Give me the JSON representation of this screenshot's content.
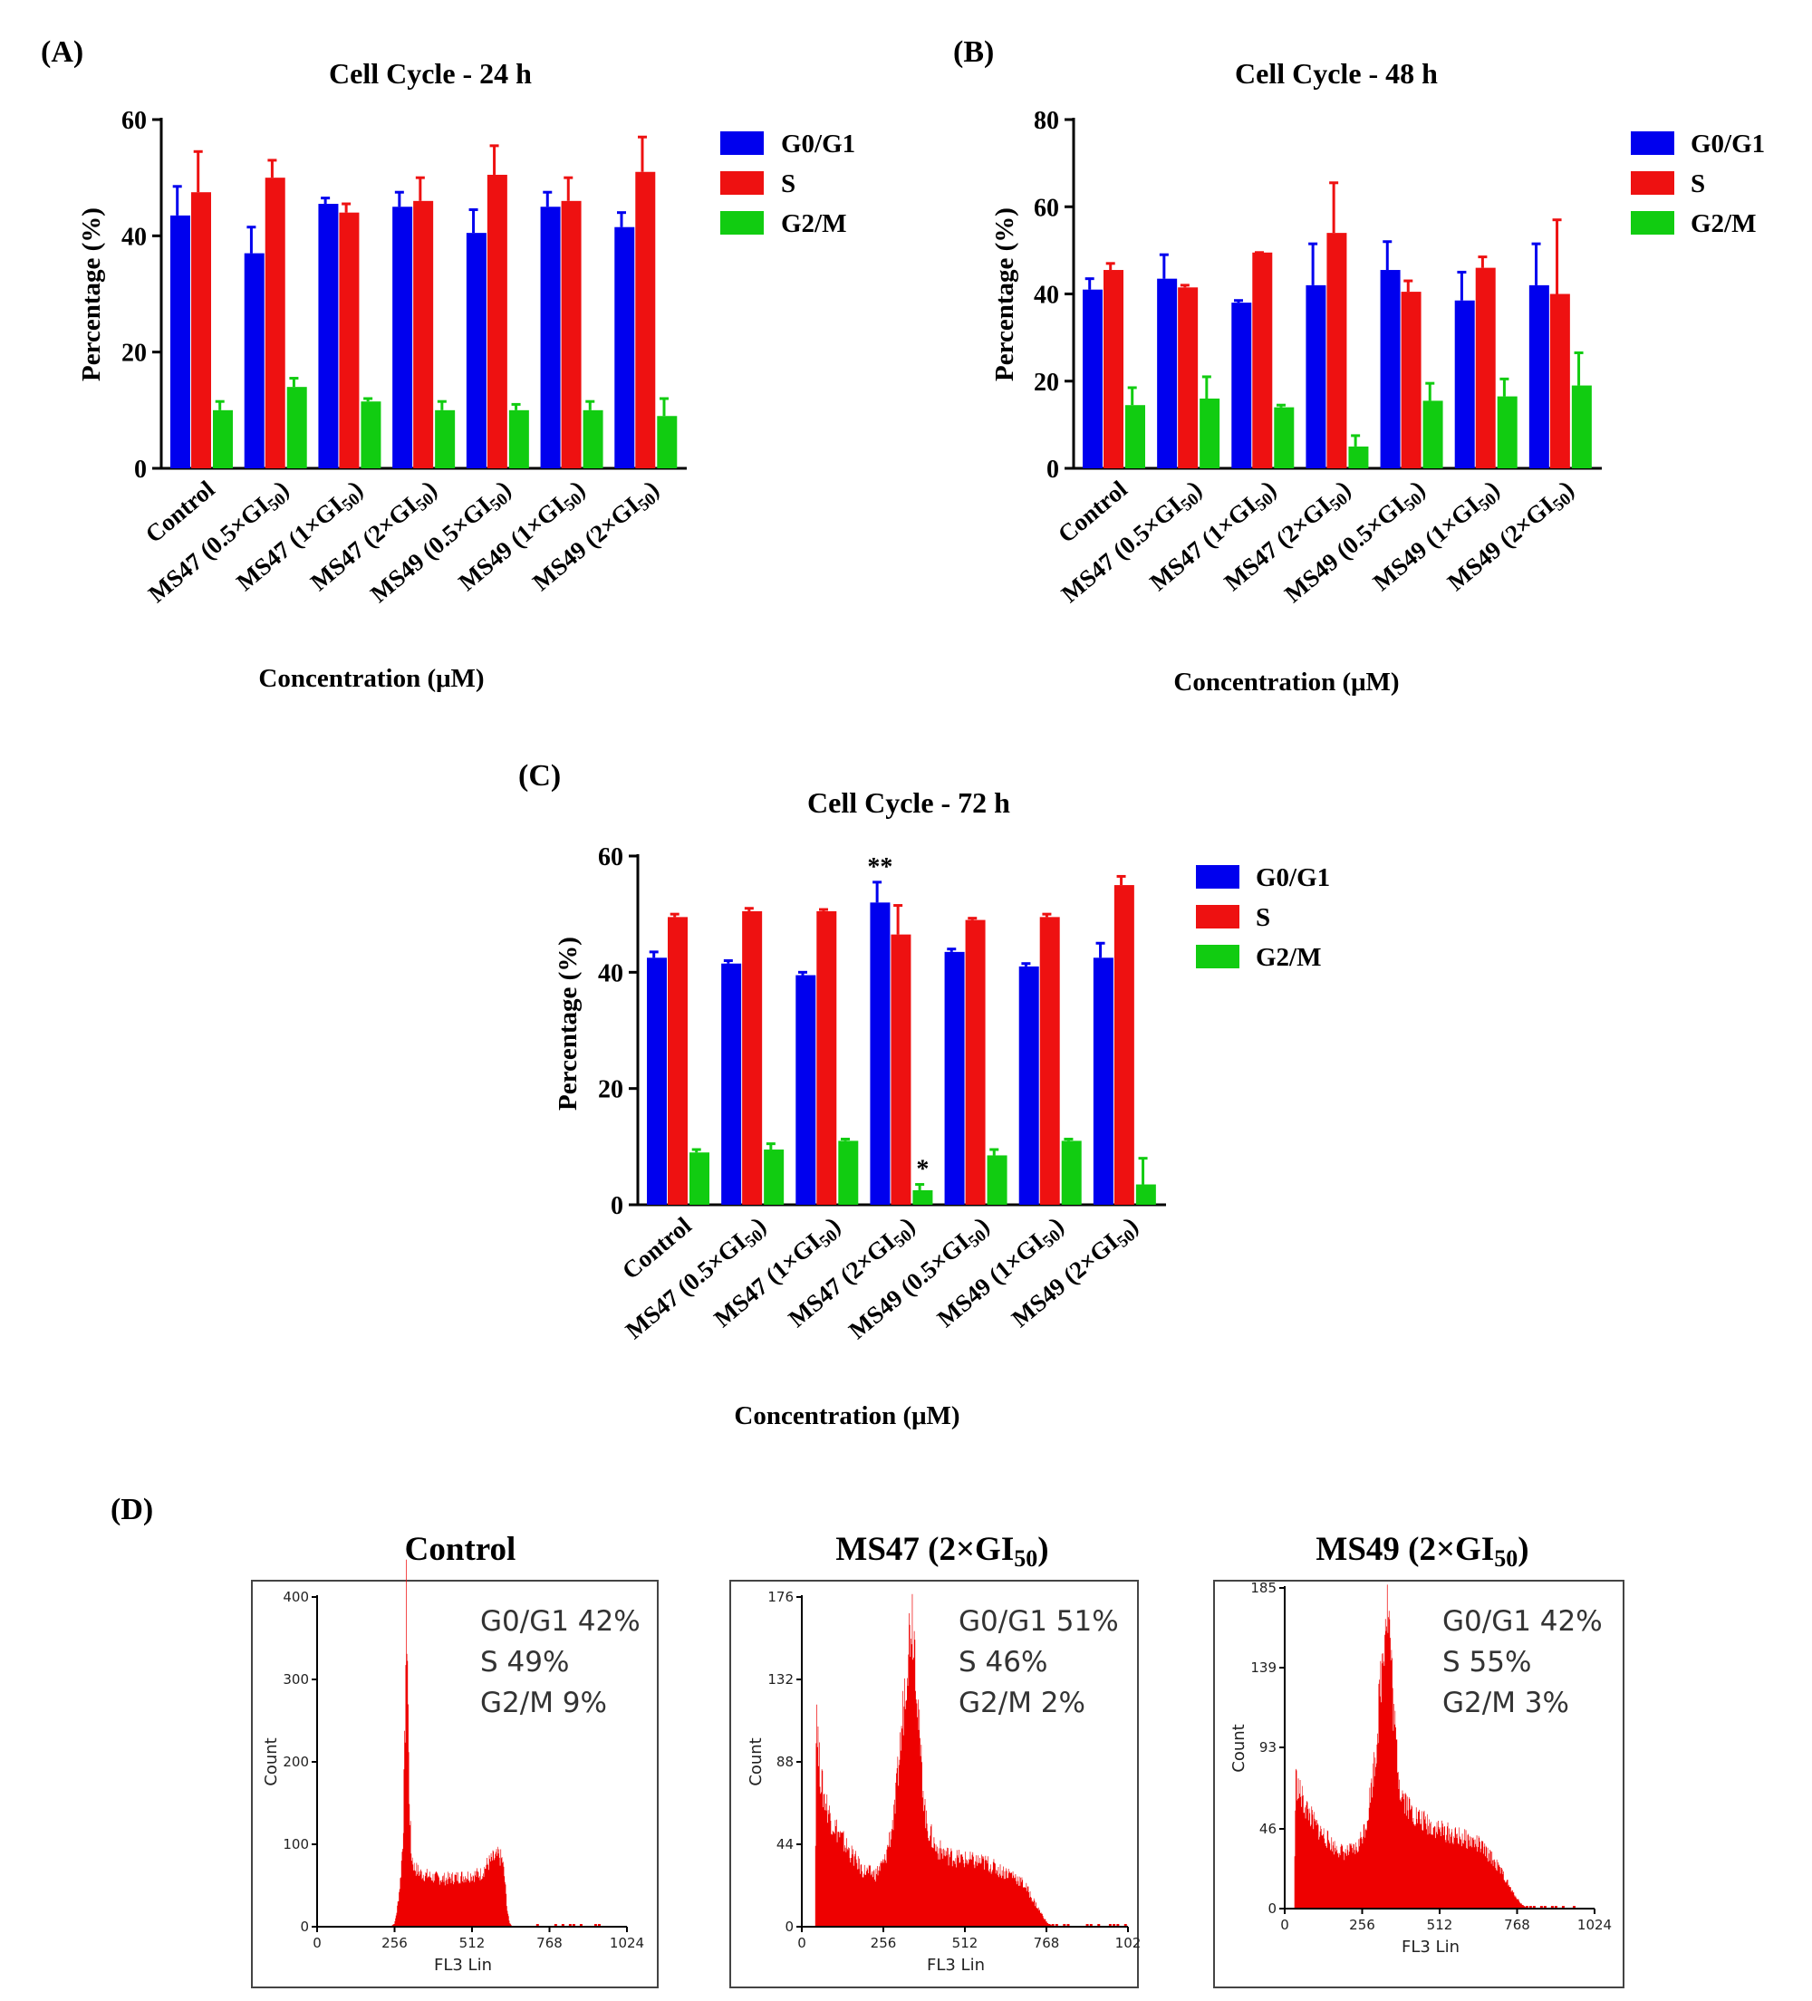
{
  "colors": {
    "G0/G1": "#0000ee",
    "S": "#ee1111",
    "G2/M": "#11cc11",
    "hist": "#ee0000",
    "axis": "#000000",
    "frame": "#444444"
  },
  "chart_data": [
    {
      "type": "bar",
      "panel": "(A)",
      "title": "Cell Cycle - 24 h",
      "xlabel": "Concentration (μM)",
      "ylabel": "Percentage (%)",
      "ylim": [
        0,
        60
      ],
      "yticks": [
        "0",
        "20",
        "40",
        "60"
      ],
      "categories": [
        "Control",
        "MS47 (0.5×GI50)",
        "MS47 (1×GI50)",
        "MS47 (2×GI50)",
        "MS49 (0.5×GI50)",
        "MS49 (1×GI50)",
        "MS49 (2×GI50)"
      ],
      "legend": [
        "G0/G1",
        "S",
        "G2/M"
      ],
      "legend_position": "right",
      "series": [
        {
          "name": "G0/G1",
          "values": [
            43.5,
            37,
            45.5,
            45,
            40.5,
            45,
            41.5
          ],
          "errors": [
            5,
            4.5,
            1,
            2.5,
            4,
            2.5,
            2.5
          ]
        },
        {
          "name": "S",
          "values": [
            47.5,
            50,
            44,
            46,
            50.5,
            46,
            51
          ],
          "errors": [
            7,
            3,
            1.5,
            4,
            5,
            4,
            6
          ]
        },
        {
          "name": "G2/M",
          "values": [
            10,
            14,
            11.5,
            10,
            10,
            10,
            9
          ],
          "errors": [
            1.5,
            1.5,
            0.5,
            1.5,
            1,
            1.5,
            3
          ]
        }
      ],
      "annotations": []
    },
    {
      "type": "bar",
      "panel": "(B)",
      "title": "Cell Cycle - 48 h",
      "xlabel": "Concentration (μM)",
      "ylabel": "Percentage (%)",
      "ylim": [
        0,
        80
      ],
      "yticks": [
        "0",
        "20",
        "40",
        "60",
        "80"
      ],
      "categories": [
        "Control",
        "MS47 (0.5×GI50)",
        "MS47 (1×GI50)",
        "MS47 (2×GI50)",
        "MS49 (0.5×GI50)",
        "MS49 (1×GI50)",
        "MS49 (2×GI50)"
      ],
      "legend": [
        "G0/G1",
        "S",
        "G2/M"
      ],
      "legend_position": "right",
      "series": [
        {
          "name": "G0/G1",
          "values": [
            41,
            43.5,
            38,
            42,
            45.5,
            38.5,
            42
          ],
          "errors": [
            2.5,
            5.5,
            0.5,
            9.5,
            6.5,
            6.5,
            9.5
          ]
        },
        {
          "name": "S",
          "values": [
            45.5,
            41.5,
            49.5,
            54,
            40.5,
            46,
            40
          ],
          "errors": [
            1.5,
            0.5,
            0,
            11.5,
            2.5,
            2.5,
            17
          ]
        },
        {
          "name": "G2/M",
          "values": [
            14.5,
            16,
            14,
            5,
            15.5,
            16.5,
            19
          ],
          "errors": [
            4,
            5,
            0.5,
            2.5,
            4,
            4,
            7.5
          ]
        }
      ],
      "annotations": []
    },
    {
      "type": "bar",
      "panel": "(C)",
      "title": "Cell Cycle - 72 h",
      "xlabel": "Concentration (μM)",
      "ylabel": "Percentage (%)",
      "ylim": [
        0,
        60
      ],
      "yticks": [
        "0",
        "20",
        "40",
        "60"
      ],
      "categories": [
        "Control",
        "MS47 (0.5×GI50)",
        "MS47 (1×GI50)",
        "MS47 (2×GI50)",
        "MS49 (0.5×GI50)",
        "MS49 (1×GI50)",
        "MS49 (2×GI50)"
      ],
      "legend": [
        "G0/G1",
        "S",
        "G2/M"
      ],
      "legend_position": "right",
      "series": [
        {
          "name": "G0/G1",
          "values": [
            42.5,
            41.5,
            39.5,
            52,
            43.5,
            41,
            42.5
          ],
          "errors": [
            1,
            0.5,
            0.5,
            3.5,
            0.5,
            0.5,
            2.5
          ]
        },
        {
          "name": "S",
          "values": [
            49.5,
            50.5,
            50.5,
            46.5,
            49,
            49.5,
            55
          ],
          "errors": [
            0.5,
            0.5,
            0.3,
            5,
            0.3,
            0.5,
            1.5
          ]
        },
        {
          "name": "G2/M",
          "values": [
            9,
            9.5,
            11,
            2.5,
            8.5,
            11,
            3.5
          ],
          "errors": [
            0.5,
            1,
            0.3,
            1,
            1,
            0.3,
            4.5
          ]
        }
      ],
      "annotations": [
        {
          "category": "MS47 (2×GI50)",
          "series": "G0/G1",
          "text": "**"
        },
        {
          "category": "MS47 (2×GI50)",
          "series": "G2/M",
          "text": "*"
        }
      ]
    },
    {
      "type": "histogram",
      "panel": "(D)",
      "title": "Control",
      "xlabel": "FL3 Lin",
      "ylabel": "Count",
      "xlim": [
        0,
        1024
      ],
      "xticks": [
        "0",
        "256",
        "512",
        "768",
        "1024"
      ],
      "ylim": [
        0,
        400
      ],
      "yticks": [
        "0",
        "100",
        "200",
        "300",
        "400"
      ],
      "stats": [
        "G0/G1 42%",
        "S 49%",
        "G2/M 9%"
      ],
      "profile": [
        [
          0,
          0
        ],
        [
          240,
          0
        ],
        [
          255,
          4
        ],
        [
          262,
          18
        ],
        [
          268,
          35
        ],
        [
          275,
          60
        ],
        [
          283,
          110
        ],
        [
          290,
          250
        ],
        [
          294,
          395
        ],
        [
          298,
          330
        ],
        [
          303,
          170
        ],
        [
          310,
          90
        ],
        [
          320,
          72
        ],
        [
          340,
          65
        ],
        [
          380,
          60
        ],
        [
          420,
          58
        ],
        [
          460,
          60
        ],
        [
          500,
          62
        ],
        [
          540,
          64
        ],
        [
          560,
          75
        ],
        [
          580,
          82
        ],
        [
          600,
          86
        ],
        [
          612,
          80
        ],
        [
          620,
          55
        ],
        [
          628,
          20
        ],
        [
          635,
          5
        ],
        [
          645,
          0
        ],
        [
          1024,
          0
        ]
      ]
    },
    {
      "type": "histogram",
      "panel": "(D)",
      "title": "MS47 (2×GI50)",
      "xlabel": "FL3 Lin",
      "ylabel": "Count",
      "xlim": [
        0,
        1024
      ],
      "xticks": [
        "0",
        "256",
        "512",
        "768",
        "102"
      ],
      "ylim": [
        0,
        176
      ],
      "yticks": [
        "0",
        "44",
        "88",
        "132",
        "176"
      ],
      "stats": [
        "G0/G1 51%",
        "S 46%",
        "G2/M 2%"
      ],
      "profile": [
        [
          0,
          0
        ],
        [
          40,
          0
        ],
        [
          45,
          125
        ],
        [
          52,
          90
        ],
        [
          65,
          72
        ],
        [
          90,
          58
        ],
        [
          120,
          48
        ],
        [
          150,
          40
        ],
        [
          190,
          30
        ],
        [
          230,
          28
        ],
        [
          260,
          35
        ],
        [
          290,
          60
        ],
        [
          310,
          100
        ],
        [
          330,
          145
        ],
        [
          345,
          170
        ],
        [
          355,
          150
        ],
        [
          370,
          95
        ],
        [
          390,
          55
        ],
        [
          420,
          42
        ],
        [
          460,
          38
        ],
        [
          500,
          36
        ],
        [
          540,
          35
        ],
        [
          580,
          34
        ],
        [
          620,
          30
        ],
        [
          660,
          28
        ],
        [
          700,
          22
        ],
        [
          740,
          10
        ],
        [
          770,
          2
        ],
        [
          790,
          0
        ],
        [
          1024,
          0
        ]
      ]
    },
    {
      "type": "histogram",
      "panel": "(D)",
      "title": "MS49 (2×GI50)",
      "xlabel": "FL3 Lin",
      "ylabel": "Count",
      "xlim": [
        0,
        1024
      ],
      "xticks": [
        "0",
        "256",
        "512",
        "768",
        "1024"
      ],
      "ylim": [
        0,
        185
      ],
      "yticks": [
        "0",
        "46",
        "93",
        "139",
        "185"
      ],
      "stats": [
        "G0/G1 42%",
        "S 55%",
        "G2/M 3%"
      ],
      "profile": [
        [
          0,
          0
        ],
        [
          30,
          0
        ],
        [
          35,
          75
        ],
        [
          45,
          68
        ],
        [
          70,
          58
        ],
        [
          100,
          48
        ],
        [
          130,
          42
        ],
        [
          160,
          36
        ],
        [
          200,
          32
        ],
        [
          240,
          35
        ],
        [
          270,
          50
        ],
        [
          300,
          90
        ],
        [
          320,
          140
        ],
        [
          335,
          178
        ],
        [
          345,
          165
        ],
        [
          360,
          110
        ],
        [
          380,
          70
        ],
        [
          410,
          58
        ],
        [
          440,
          52
        ],
        [
          480,
          48
        ],
        [
          520,
          45
        ],
        [
          560,
          42
        ],
        [
          600,
          40
        ],
        [
          640,
          37
        ],
        [
          680,
          30
        ],
        [
          720,
          20
        ],
        [
          750,
          10
        ],
        [
          780,
          3
        ],
        [
          800,
          0
        ],
        [
          1024,
          0
        ]
      ]
    }
  ]
}
